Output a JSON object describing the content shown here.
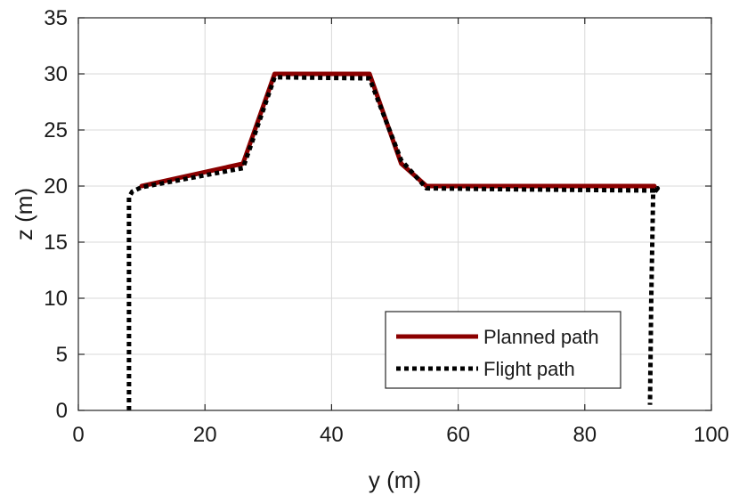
{
  "chart_data": {
    "type": "line",
    "title": "",
    "xlabel": "y (m)",
    "ylabel": "z (m)",
    "xlim": [
      0,
      100
    ],
    "ylim": [
      0,
      35
    ],
    "xticks": [
      0,
      20,
      40,
      60,
      80,
      100
    ],
    "yticks": [
      0,
      5,
      10,
      15,
      20,
      25,
      30,
      35
    ],
    "grid": true,
    "legend_position": "bottom-right",
    "series": [
      {
        "name": "Planned path",
        "color": "#8b0000",
        "style": "solid",
        "points": [
          [
            10,
            20
          ],
          [
            26,
            22
          ],
          [
            31,
            30
          ],
          [
            46,
            30
          ],
          [
            51,
            22
          ],
          [
            55,
            20
          ],
          [
            91,
            20
          ]
        ]
      },
      {
        "name": "Flight path",
        "color": "#000000",
        "style": "dotted",
        "points": [
          [
            8,
            0
          ],
          [
            8,
            19
          ],
          [
            8.5,
            19.5
          ],
          [
            10,
            19.9
          ],
          [
            26,
            21.6
          ],
          [
            31,
            29.7
          ],
          [
            46,
            29.6
          ],
          [
            51,
            22.3
          ],
          [
            55,
            19.8
          ],
          [
            70,
            19.7
          ],
          [
            91,
            19.6
          ],
          [
            91.5,
            19.8
          ],
          [
            90.8,
            19.3
          ],
          [
            90.5,
            10
          ],
          [
            90.3,
            0.5
          ]
        ]
      }
    ]
  }
}
